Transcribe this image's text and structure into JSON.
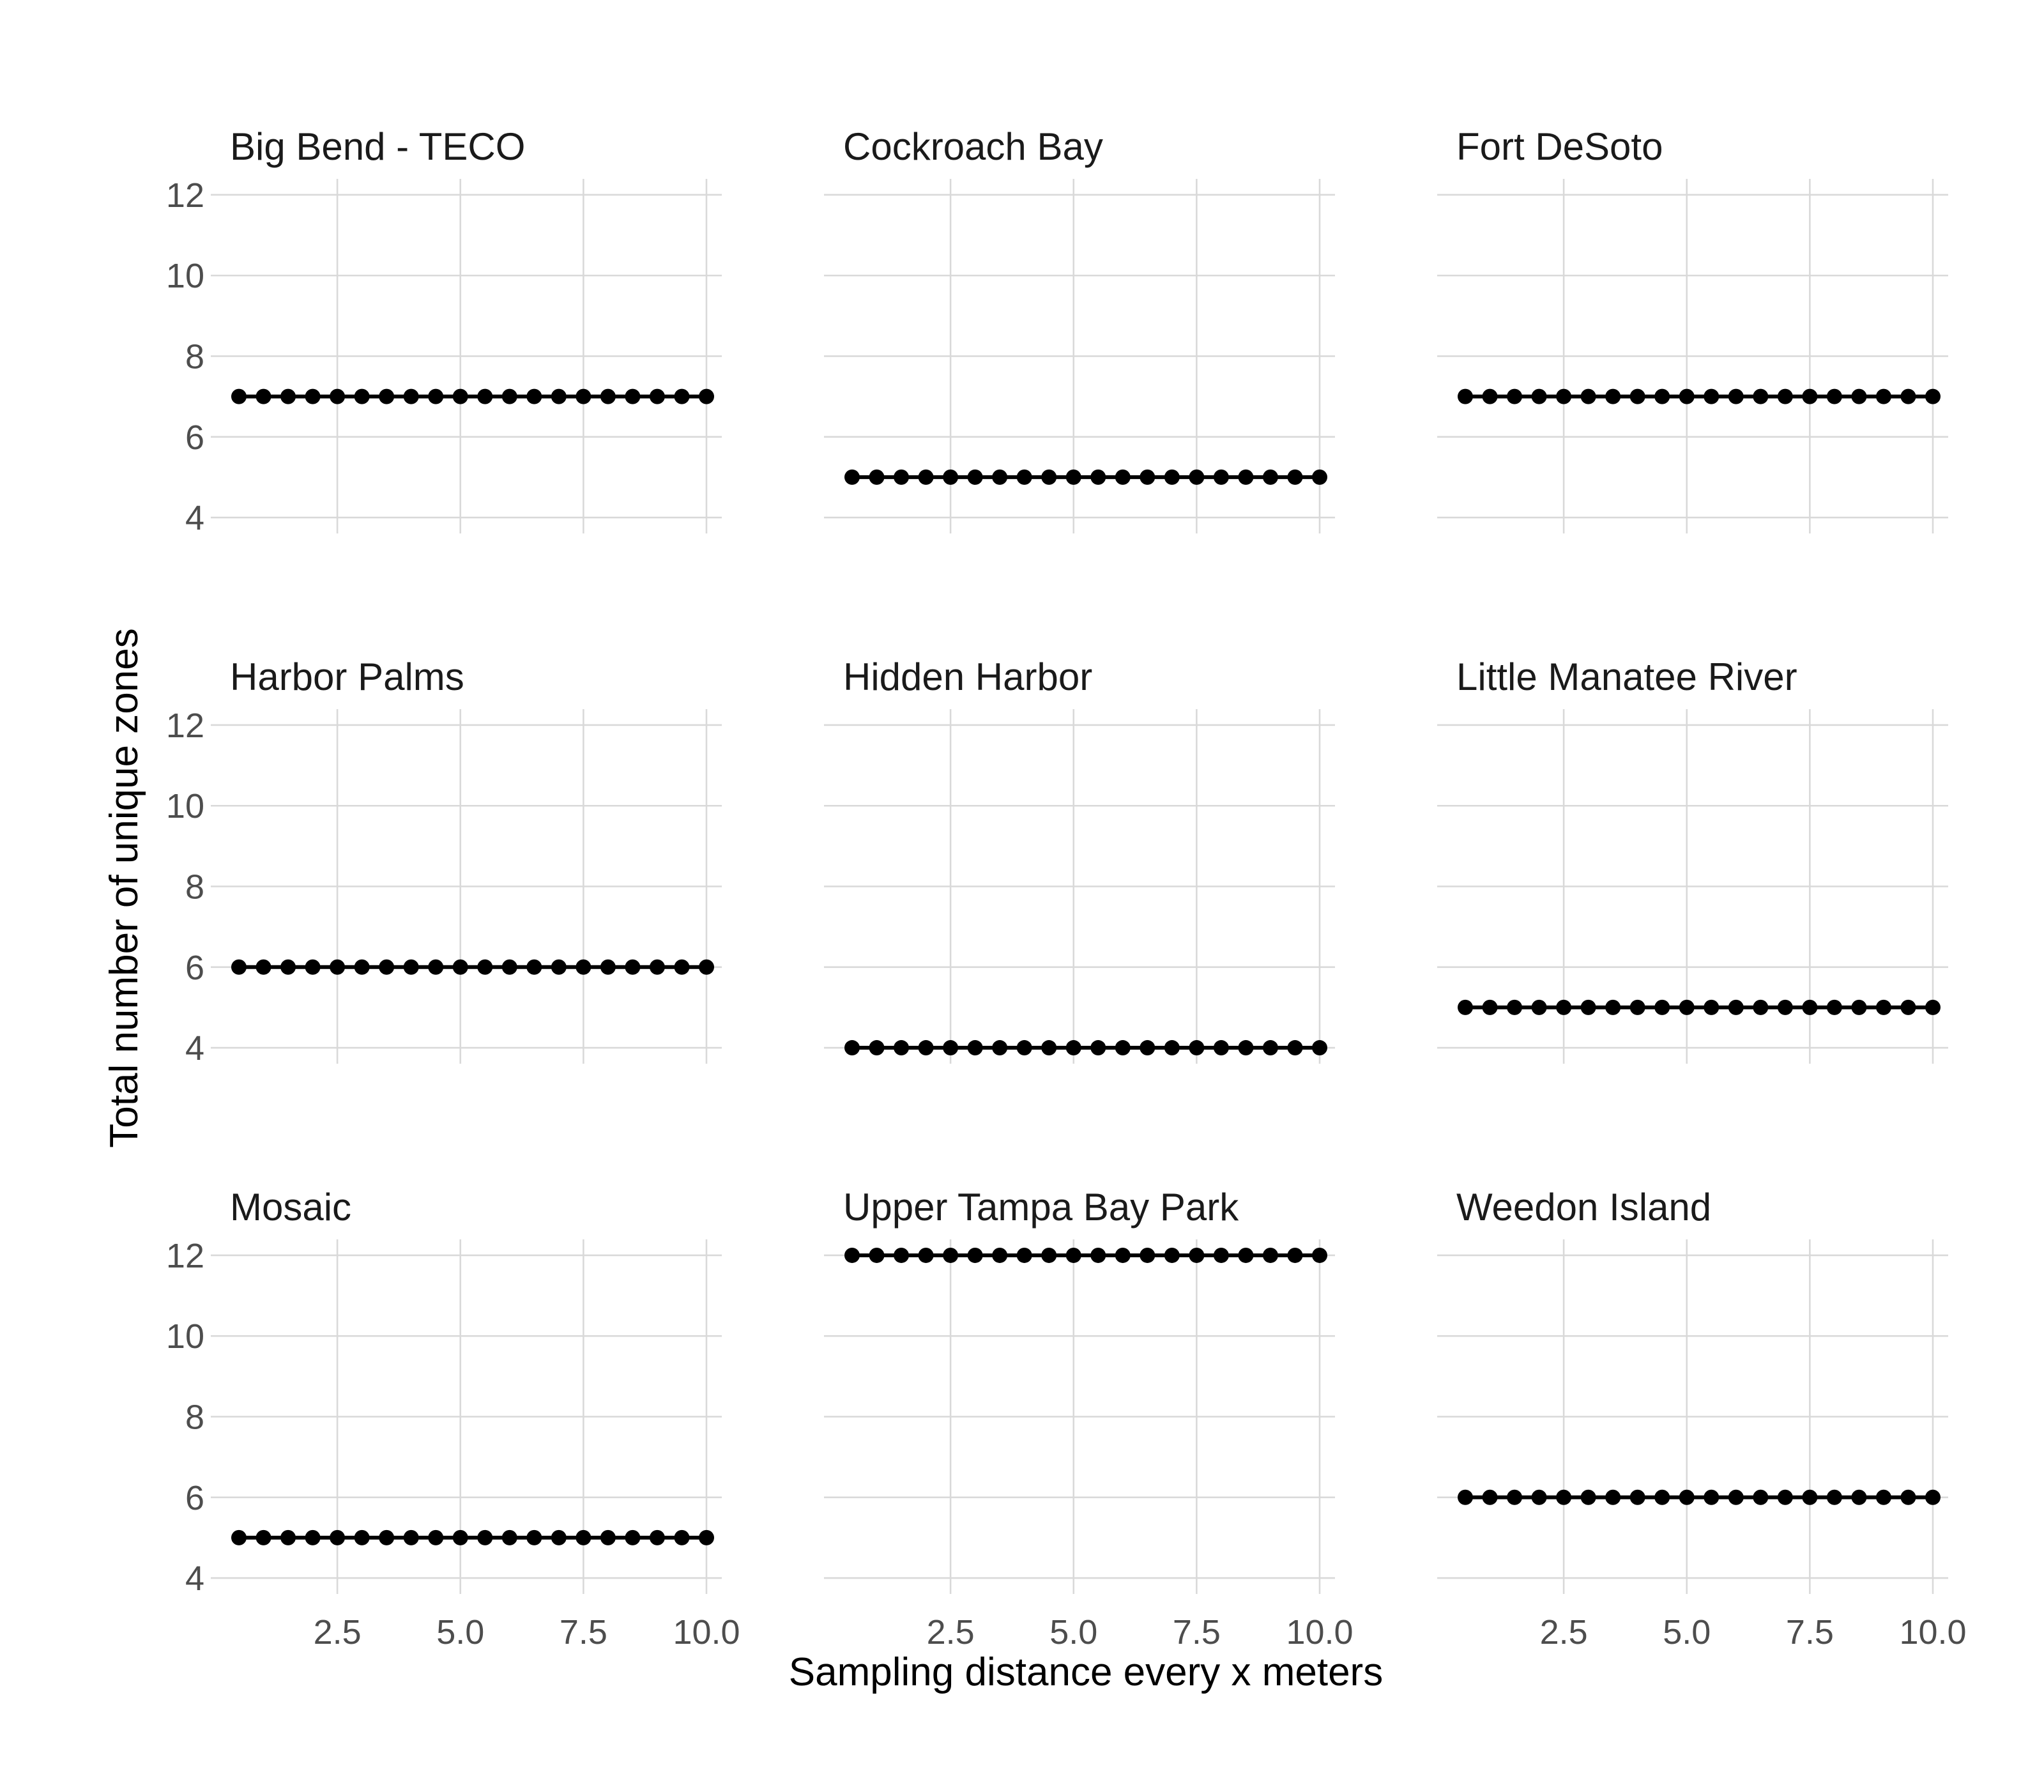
{
  "chart_data": {
    "type": "line",
    "facet_layout": "3x3 grid",
    "xlabel": "Sampling distance every x meters",
    "ylabel": "Total number of unique zones",
    "xlim": [
      0.5,
      10
    ],
    "ylim": [
      4,
      12
    ],
    "x_ticks": [
      2.5,
      5.0,
      7.5,
      10.0
    ],
    "x_tick_labels": [
      "2.5",
      "5.0",
      "7.5",
      "10.0"
    ],
    "y_ticks": [
      4,
      6,
      8,
      10,
      12
    ],
    "y_tick_labels": [
      "4",
      "6",
      "8",
      "10",
      "12"
    ],
    "grid": true,
    "x": [
      0.5,
      1.0,
      1.5,
      2.0,
      2.5,
      3.0,
      3.5,
      4.0,
      4.5,
      5.0,
      5.5,
      6.0,
      6.5,
      7.0,
      7.5,
      8.0,
      8.5,
      9.0,
      9.5,
      10.0
    ],
    "series_color": "#000000",
    "grid_color": "#d9d9d9",
    "panels": [
      {
        "title": "Big Bend - TECO",
        "value": 7
      },
      {
        "title": "Cockroach Bay",
        "value": 5
      },
      {
        "title": "Fort DeSoto",
        "value": 7
      },
      {
        "title": "Harbor Palms",
        "value": 6
      },
      {
        "title": "Hidden Harbor",
        "value": 4
      },
      {
        "title": "Little Manatee River",
        "value": 5
      },
      {
        "title": "Mosaic",
        "value": 5
      },
      {
        "title": "Upper Tampa Bay Park",
        "value": 12
      },
      {
        "title": "Weedon Island",
        "value": 6
      }
    ]
  }
}
